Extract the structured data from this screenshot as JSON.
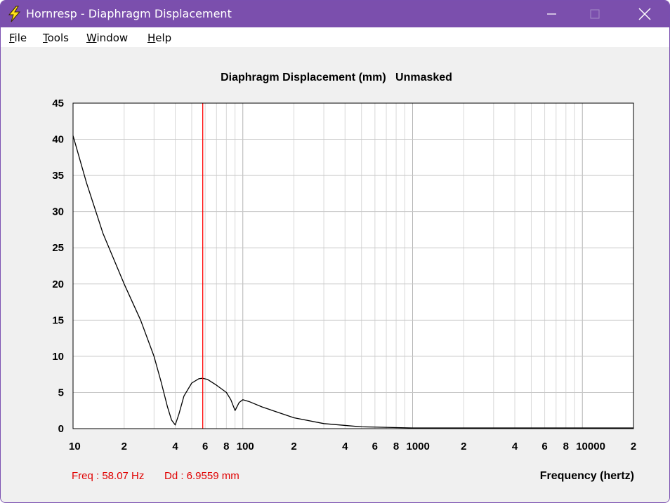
{
  "window": {
    "title": "Hornresp - Diaphragm Displacement",
    "title_bar_color": "#7b4fad",
    "app_icon": "lightning-bolt-icon",
    "controls": [
      "minimize-icon",
      "maximize-icon",
      "close-icon"
    ]
  },
  "menu": {
    "items": [
      {
        "label": "File",
        "accel": "F",
        "rest": "ile"
      },
      {
        "label": "Tools",
        "accel": "T",
        "rest": "ools"
      },
      {
        "label": "Window",
        "accel": "W",
        "rest": "indow"
      },
      {
        "label": "Help",
        "accel": "H",
        "rest": "elp"
      }
    ]
  },
  "readout": {
    "freq": "Freq : 58.07 Hz",
    "dd": "Dd : 6.9559 mm",
    "color": "#e00000"
  },
  "chart_data": {
    "type": "line",
    "title": "Diaphragm Displacement (mm)   Unmasked",
    "xlabel": "Frequency (hertz)",
    "ylabel": "",
    "x_scale": "log",
    "xlim": [
      10,
      20000
    ],
    "ylim": [
      0,
      45
    ],
    "grid": true,
    "y_ticks": [
      0,
      5,
      10,
      15,
      20,
      25,
      30,
      35,
      40,
      45
    ],
    "x_tick_labels": [
      {
        "x": 10,
        "label": "10"
      },
      {
        "x": 20,
        "label": "2"
      },
      {
        "x": 40,
        "label": "4"
      },
      {
        "x": 60,
        "label": "6"
      },
      {
        "x": 80,
        "label": "8"
      },
      {
        "x": 100,
        "label": "100"
      },
      {
        "x": 200,
        "label": "2"
      },
      {
        "x": 400,
        "label": "4"
      },
      {
        "x": 600,
        "label": "6"
      },
      {
        "x": 800,
        "label": "8"
      },
      {
        "x": 1000,
        "label": "1000"
      },
      {
        "x": 2000,
        "label": "2"
      },
      {
        "x": 4000,
        "label": "4"
      },
      {
        "x": 6000,
        "label": "6"
      },
      {
        "x": 8000,
        "label": "8"
      },
      {
        "x": 10000,
        "label": "10000"
      },
      {
        "x": 20000,
        "label": "2"
      }
    ],
    "series": [
      {
        "color": "#000000",
        "x": [
          10,
          12,
          15,
          20,
          25,
          30,
          33,
          36,
          38,
          40,
          42,
          45,
          50,
          55,
          58,
          62,
          70,
          80,
          85,
          90,
          95,
          100,
          110,
          130,
          150,
          200,
          300,
          500,
          1000,
          2000,
          5000,
          10000,
          20000
        ],
        "y": [
          40.5,
          34,
          27,
          20,
          15,
          10,
          6.5,
          3,
          1.2,
          0.5,
          2,
          4.5,
          6.3,
          6.9,
          6.96,
          6.8,
          6,
          5,
          4,
          2.5,
          3.6,
          4,
          3.7,
          3,
          2.5,
          1.5,
          0.7,
          0.25,
          0.1,
          0.1,
          0.1,
          0.1,
          0.1
        ]
      }
    ],
    "marker": {
      "x": 58.07,
      "color": "#ff0000"
    }
  }
}
